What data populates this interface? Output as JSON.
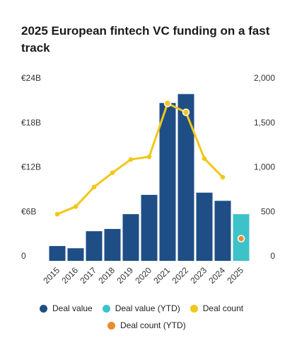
{
  "title": "2025 European fintech VC funding on a fast track",
  "colors": {
    "deal_value": "#1f4e86",
    "deal_value_ytd": "#3ec2c9",
    "deal_count": "#f2c718",
    "deal_count_ytd": "#e98c2c",
    "text": "#333333",
    "grid": "#e6e6e6"
  },
  "legend": [
    {
      "label": "Deal value",
      "color_key": "deal_value"
    },
    {
      "label": "Deal value (YTD)",
      "color_key": "deal_value_ytd"
    },
    {
      "label": "Deal count",
      "color_key": "deal_count"
    },
    {
      "label": "Deal count (YTD)",
      "color_key": "deal_count_ytd"
    }
  ],
  "chart_data": {
    "type": "bar",
    "title": "2025 European fintech VC funding on a fast track",
    "categories": [
      "2015",
      "2016",
      "2017",
      "2018",
      "2019",
      "2020",
      "2021",
      "2022",
      "2023",
      "2024",
      "2025"
    ],
    "series": [
      {
        "name": "Deal value",
        "axis": "left",
        "kind": "bar",
        "values": [
          2.0,
          1.7,
          4.0,
          4.3,
          6.3,
          8.9,
          21.3,
          22.5,
          9.2,
          8.1,
          null
        ]
      },
      {
        "name": "Deal value (YTD)",
        "axis": "left",
        "kind": "bar",
        "values": [
          null,
          null,
          null,
          null,
          null,
          null,
          null,
          null,
          null,
          null,
          6.3
        ]
      },
      {
        "name": "Deal count",
        "axis": "right",
        "kind": "line",
        "values": [
          525,
          610,
          830,
          990,
          1140,
          1170,
          1770,
          1670,
          1150,
          940,
          null
        ]
      },
      {
        "name": "Deal count (YTD)",
        "axis": "right",
        "kind": "point",
        "values": [
          null,
          null,
          null,
          null,
          null,
          null,
          null,
          null,
          null,
          null,
          250
        ]
      }
    ],
    "left_axis": {
      "ticks": [
        "0",
        "€6B",
        "€12B",
        "€18B",
        "€24B"
      ],
      "tick_values": [
        0,
        6,
        12,
        18,
        24
      ],
      "ylim": [
        0,
        24
      ]
    },
    "right_axis": {
      "ticks": [
        "0",
        "500",
        "1,000",
        "1,500",
        "2,000"
      ],
      "tick_values": [
        0,
        500,
        1000,
        1500,
        2000
      ],
      "ylim": [
        0,
        2000
      ]
    },
    "legend_position": "bottom",
    "grid": false
  }
}
